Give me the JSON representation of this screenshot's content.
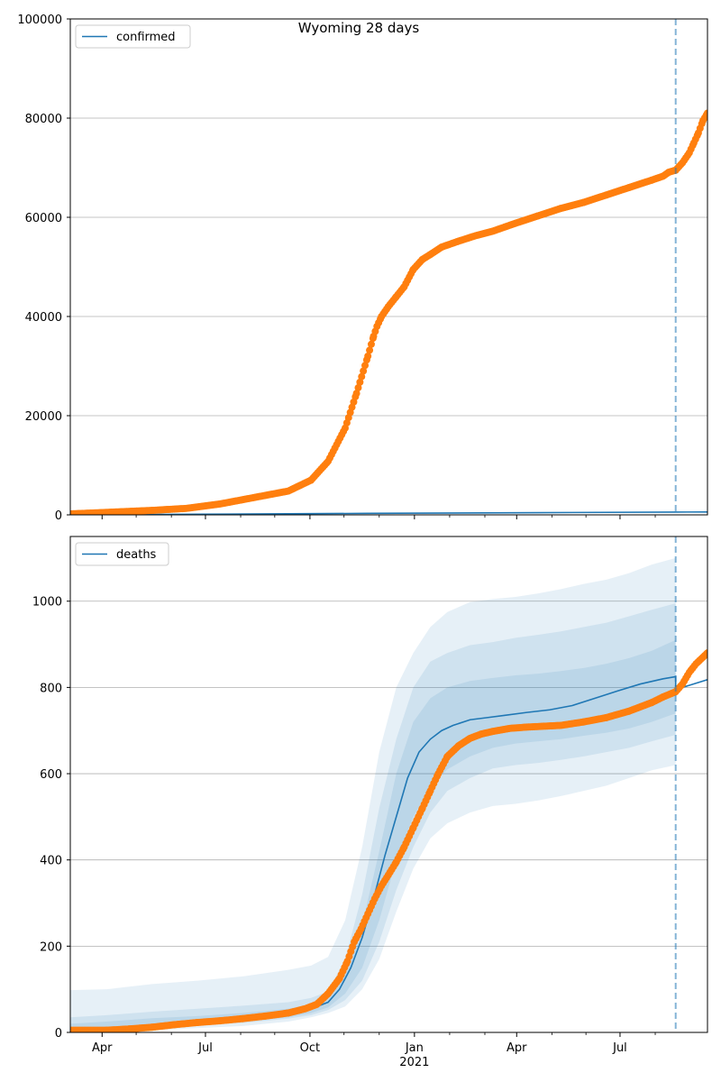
{
  "figure_title": "Wyoming 28 days",
  "colors": {
    "model": "#1f77b4",
    "observed": "#ff7f0e",
    "band": "#1f77b4",
    "grid": "#b0b0b0",
    "forecast_line": "#1f77b4"
  },
  "x_axis": {
    "tick_labels": [
      "Apr",
      "Jul",
      "Oct",
      "Jan",
      "Apr",
      "Jul"
    ],
    "tick_days": [
      16,
      107,
      199,
      291,
      381,
      472
    ],
    "minor_tick_days": [
      46,
      77,
      138,
      168,
      229,
      260,
      322,
      353,
      412,
      442,
      503
    ],
    "year_label": "2021",
    "year_label_day": 291,
    "range_days": [
      -12,
      549
    ],
    "forecast_day": 521
  },
  "chart_data": [
    {
      "type": "line",
      "name": "confirmed",
      "legend": [
        "confirmed"
      ],
      "legend_position": "top-left",
      "ylim": [
        0,
        100000
      ],
      "yticks": [
        0,
        20000,
        40000,
        60000,
        80000,
        100000
      ],
      "ytick_labels": [
        "0",
        "20000",
        "40000",
        "60000",
        "80000",
        "100000"
      ],
      "grid": true,
      "model_line": {
        "x": [
          -12,
          100,
          250,
          400,
          521,
          549
        ],
        "y": [
          0,
          120,
          300,
          450,
          560,
          580
        ]
      },
      "observed": {
        "x": [
          -12,
          0,
          30,
          60,
          90,
          120,
          150,
          180,
          200,
          215,
          230,
          240,
          250,
          255,
          258,
          262,
          268,
          275,
          282,
          290,
          298,
          305,
          315,
          330,
          345,
          360,
          380,
          400,
          420,
          440,
          460,
          480,
          500,
          510,
          515,
          521,
          527,
          533,
          537,
          541,
          545,
          549
        ],
        "y": [
          200,
          300,
          600,
          900,
          1300,
          2200,
          3500,
          4800,
          7000,
          10800,
          17500,
          24500,
          32000,
          36000,
          38000,
          40000,
          42000,
          44000,
          46000,
          49500,
          51500,
          52500,
          54000,
          55200,
          56300,
          57200,
          58800,
          60300,
          61800,
          63000,
          64500,
          66000,
          67500,
          68300,
          69100,
          69500,
          71000,
          73000,
          75000,
          77000,
          79500,
          81000
        ]
      }
    },
    {
      "type": "line",
      "name": "deaths",
      "legend": [
        "deaths"
      ],
      "legend_position": "top-left",
      "ylim": [
        0,
        1150
      ],
      "yticks": [
        0,
        200,
        400,
        600,
        800,
        1000
      ],
      "ytick_labels": [
        "0",
        "200",
        "400",
        "600",
        "800",
        "1000"
      ],
      "grid": true,
      "band_x": [
        -12,
        20,
        60,
        100,
        140,
        180,
        200,
        215,
        230,
        245,
        260,
        275,
        290,
        305,
        320,
        340,
        360,
        380,
        400,
        420,
        440,
        460,
        480,
        500,
        521
      ],
      "band_outer": {
        "lower": [
          0,
          0,
          5,
          10,
          15,
          25,
          35,
          45,
          60,
          100,
          170,
          280,
          380,
          450,
          485,
          510,
          525,
          530,
          538,
          548,
          560,
          572,
          590,
          608,
          620
        ],
        "upper": [
          98,
          100,
          112,
          120,
          130,
          145,
          155,
          175,
          260,
          430,
          650,
          800,
          880,
          940,
          975,
          998,
          1005,
          1010,
          1018,
          1028,
          1040,
          1050,
          1065,
          1085,
          1100
        ]
      },
      "band_mid": {
        "lower": [
          0,
          5,
          12,
          18,
          22,
          32,
          40,
          52,
          75,
          120,
          210,
          330,
          430,
          510,
          560,
          590,
          612,
          620,
          625,
          632,
          640,
          650,
          660,
          675,
          690
        ],
        "upper": [
          35,
          40,
          48,
          55,
          62,
          70,
          80,
          95,
          170,
          320,
          520,
          680,
          800,
          860,
          880,
          898,
          905,
          915,
          922,
          930,
          940,
          950,
          965,
          980,
          995
        ]
      },
      "band_inner": {
        "lower": [
          5,
          8,
          15,
          20,
          25,
          35,
          45,
          58,
          90,
          150,
          260,
          400,
          500,
          570,
          610,
          640,
          660,
          670,
          675,
          680,
          688,
          695,
          705,
          720,
          740
        ],
        "upper": [
          20,
          25,
          33,
          38,
          45,
          55,
          65,
          80,
          140,
          250,
          420,
          600,
          720,
          775,
          800,
          815,
          822,
          828,
          832,
          838,
          845,
          855,
          868,
          885,
          910
        ]
      },
      "model_line": {
        "x": [
          -12,
          20,
          60,
          100,
          140,
          180,
          200,
          215,
          225,
          235,
          245,
          255,
          265,
          275,
          285,
          295,
          305,
          315,
          325,
          340,
          355,
          370,
          390,
          410,
          430,
          450,
          470,
          490,
          510,
          521,
          521,
          549
        ],
        "y": [
          3,
          5,
          12,
          20,
          28,
          42,
          55,
          70,
          100,
          150,
          220,
          310,
          410,
          500,
          590,
          650,
          680,
          700,
          712,
          725,
          730,
          735,
          742,
          748,
          758,
          775,
          792,
          808,
          820,
          825,
          795,
          818
        ]
      },
      "observed": {
        "x": [
          -12,
          20,
          40,
          60,
          80,
          100,
          120,
          140,
          160,
          180,
          195,
          205,
          215,
          225,
          232,
          238,
          244,
          250,
          256,
          262,
          268,
          275,
          282,
          290,
          298,
          305,
          312,
          320,
          330,
          340,
          350,
          360,
          375,
          390,
          405,
          420,
          440,
          460,
          480,
          500,
          510,
          521,
          527,
          533,
          539,
          545,
          549
        ],
        "y": [
          5,
          5,
          8,
          12,
          18,
          23,
          27,
          32,
          38,
          45,
          55,
          65,
          90,
          125,
          165,
          210,
          240,
          275,
          310,
          340,
          365,
          395,
          430,
          475,
          520,
          560,
          600,
          640,
          665,
          682,
          692,
          698,
          705,
          708,
          710,
          712,
          720,
          730,
          745,
          765,
          778,
          790,
          808,
          835,
          855,
          870,
          880
        ]
      }
    }
  ]
}
